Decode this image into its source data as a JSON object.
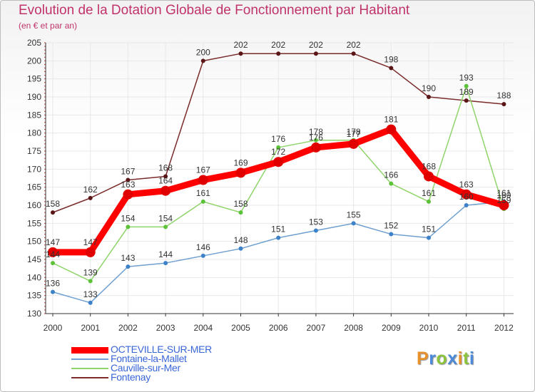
{
  "header": {
    "title": "Evolution de la Dotation Globale de Fonctionnement par Habitant",
    "subtitle": "(en € et par an)"
  },
  "brand": {
    "logo_text": "Proxiti"
  },
  "colors": {
    "text": "#c0336b",
    "axis": "#333333",
    "grid": "#e8e8e8",
    "label": "#333333"
  },
  "chart_data": {
    "type": "line",
    "title": "Evolution de la Dotation Globale de Fonctionnement par Habitant",
    "subtitle": "(en € et par an)",
    "xlabel": "",
    "ylabel": "",
    "x": [
      "2000",
      "2001",
      "2002",
      "2003",
      "2004",
      "2005",
      "2006",
      "2007",
      "2008",
      "2009",
      "2010",
      "2011",
      "2012"
    ],
    "ylim": [
      130,
      205
    ],
    "yticks": [
      130,
      135,
      140,
      145,
      150,
      155,
      160,
      165,
      170,
      175,
      180,
      185,
      190,
      195,
      200,
      205
    ],
    "legend_position": "bottom-left",
    "series": [
      {
        "name": "OCTEVILLE-SUR-MER",
        "color": "#ff0000",
        "marker": "#e00000",
        "bold": true,
        "values": [
          147,
          147,
          163,
          164,
          167,
          169,
          172,
          176,
          177,
          181,
          168,
          163,
          160
        ],
        "labels": [
          "147",
          "147",
          "163",
          "164",
          "167",
          "169",
          "172",
          "176",
          "177",
          "181",
          "168",
          "163",
          "160"
        ]
      },
      {
        "name": "Fontaine-la-Mallet",
        "color": "#6fa0d0",
        "marker": "#3d82c8",
        "bold": false,
        "values": [
          136,
          133,
          143,
          144,
          146,
          148,
          151,
          153,
          155,
          152,
          151,
          160,
          161
        ],
        "labels": [
          "136",
          "133",
          "143",
          "144",
          "146",
          "148",
          "151",
          "153",
          "155",
          "152",
          "151",
          "160",
          "161"
        ]
      },
      {
        "name": "Cauville-sur-Mer",
        "color": "#8fd46a",
        "marker": "#5cc23a",
        "bold": false,
        "values": [
          144,
          139,
          154,
          154,
          161,
          158,
          176,
          178,
          178,
          166,
          161,
          193,
          159
        ],
        "labels": [
          "144",
          "139",
          "154",
          "154",
          "161",
          "158",
          "176",
          "178",
          "178",
          "166",
          "161",
          "193",
          "159"
        ]
      },
      {
        "name": "Fontenay",
        "color": "#7a2b2b",
        "marker": "#5a1616",
        "bold": false,
        "values": [
          158,
          162,
          167,
          168,
          200,
          202,
          202,
          202,
          202,
          198,
          190,
          189,
          188
        ],
        "labels": [
          "158",
          "162",
          "167",
          "168",
          "200",
          "202",
          "202",
          "202",
          "202",
          "198",
          "190",
          "189",
          "188"
        ]
      }
    ]
  }
}
